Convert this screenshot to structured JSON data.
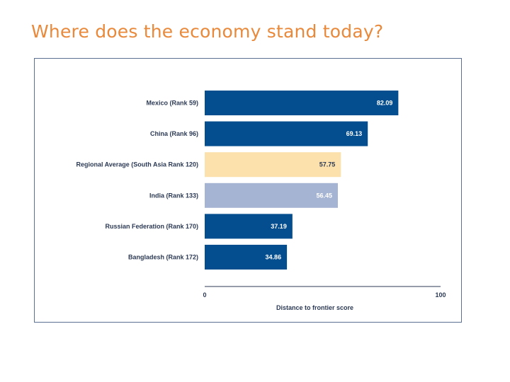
{
  "slide": {
    "title": "Where does the economy stand today?"
  },
  "colors": {
    "title": "#e8893b",
    "bar_dark": "#044d8f",
    "bar_regional": "#fce1ad",
    "bar_india": "#a6b4d3",
    "frame": "#5b6f93"
  },
  "chart_data": {
    "type": "bar",
    "orientation": "horizontal",
    "categories": [
      "Mexico (Rank 59)",
      "China (Rank 96)",
      "Regional Average (South Asia Rank 120)",
      "India (Rank 133)",
      "Russian Federation (Rank 170)",
      "Bangladesh (Rank 172)"
    ],
    "values": [
      82.09,
      69.13,
      57.75,
      56.45,
      37.19,
      34.86
    ],
    "value_labels": [
      "82.09",
      "69.13",
      "57.75",
      "56.45",
      "37.19",
      "34.86"
    ],
    "bar_colors": [
      "#044d8f",
      "#044d8f",
      "#fce1ad",
      "#a6b4d3",
      "#044d8f",
      "#044d8f"
    ],
    "value_label_colors": [
      "#ffffff",
      "#ffffff",
      "#2c3a55",
      "#ffffff",
      "#ffffff",
      "#ffffff"
    ],
    "xlabel": "Distance to frontier score",
    "xlim": [
      0,
      100
    ],
    "xticks": [
      "0",
      "100"
    ],
    "grid": false,
    "legend": "none"
  }
}
